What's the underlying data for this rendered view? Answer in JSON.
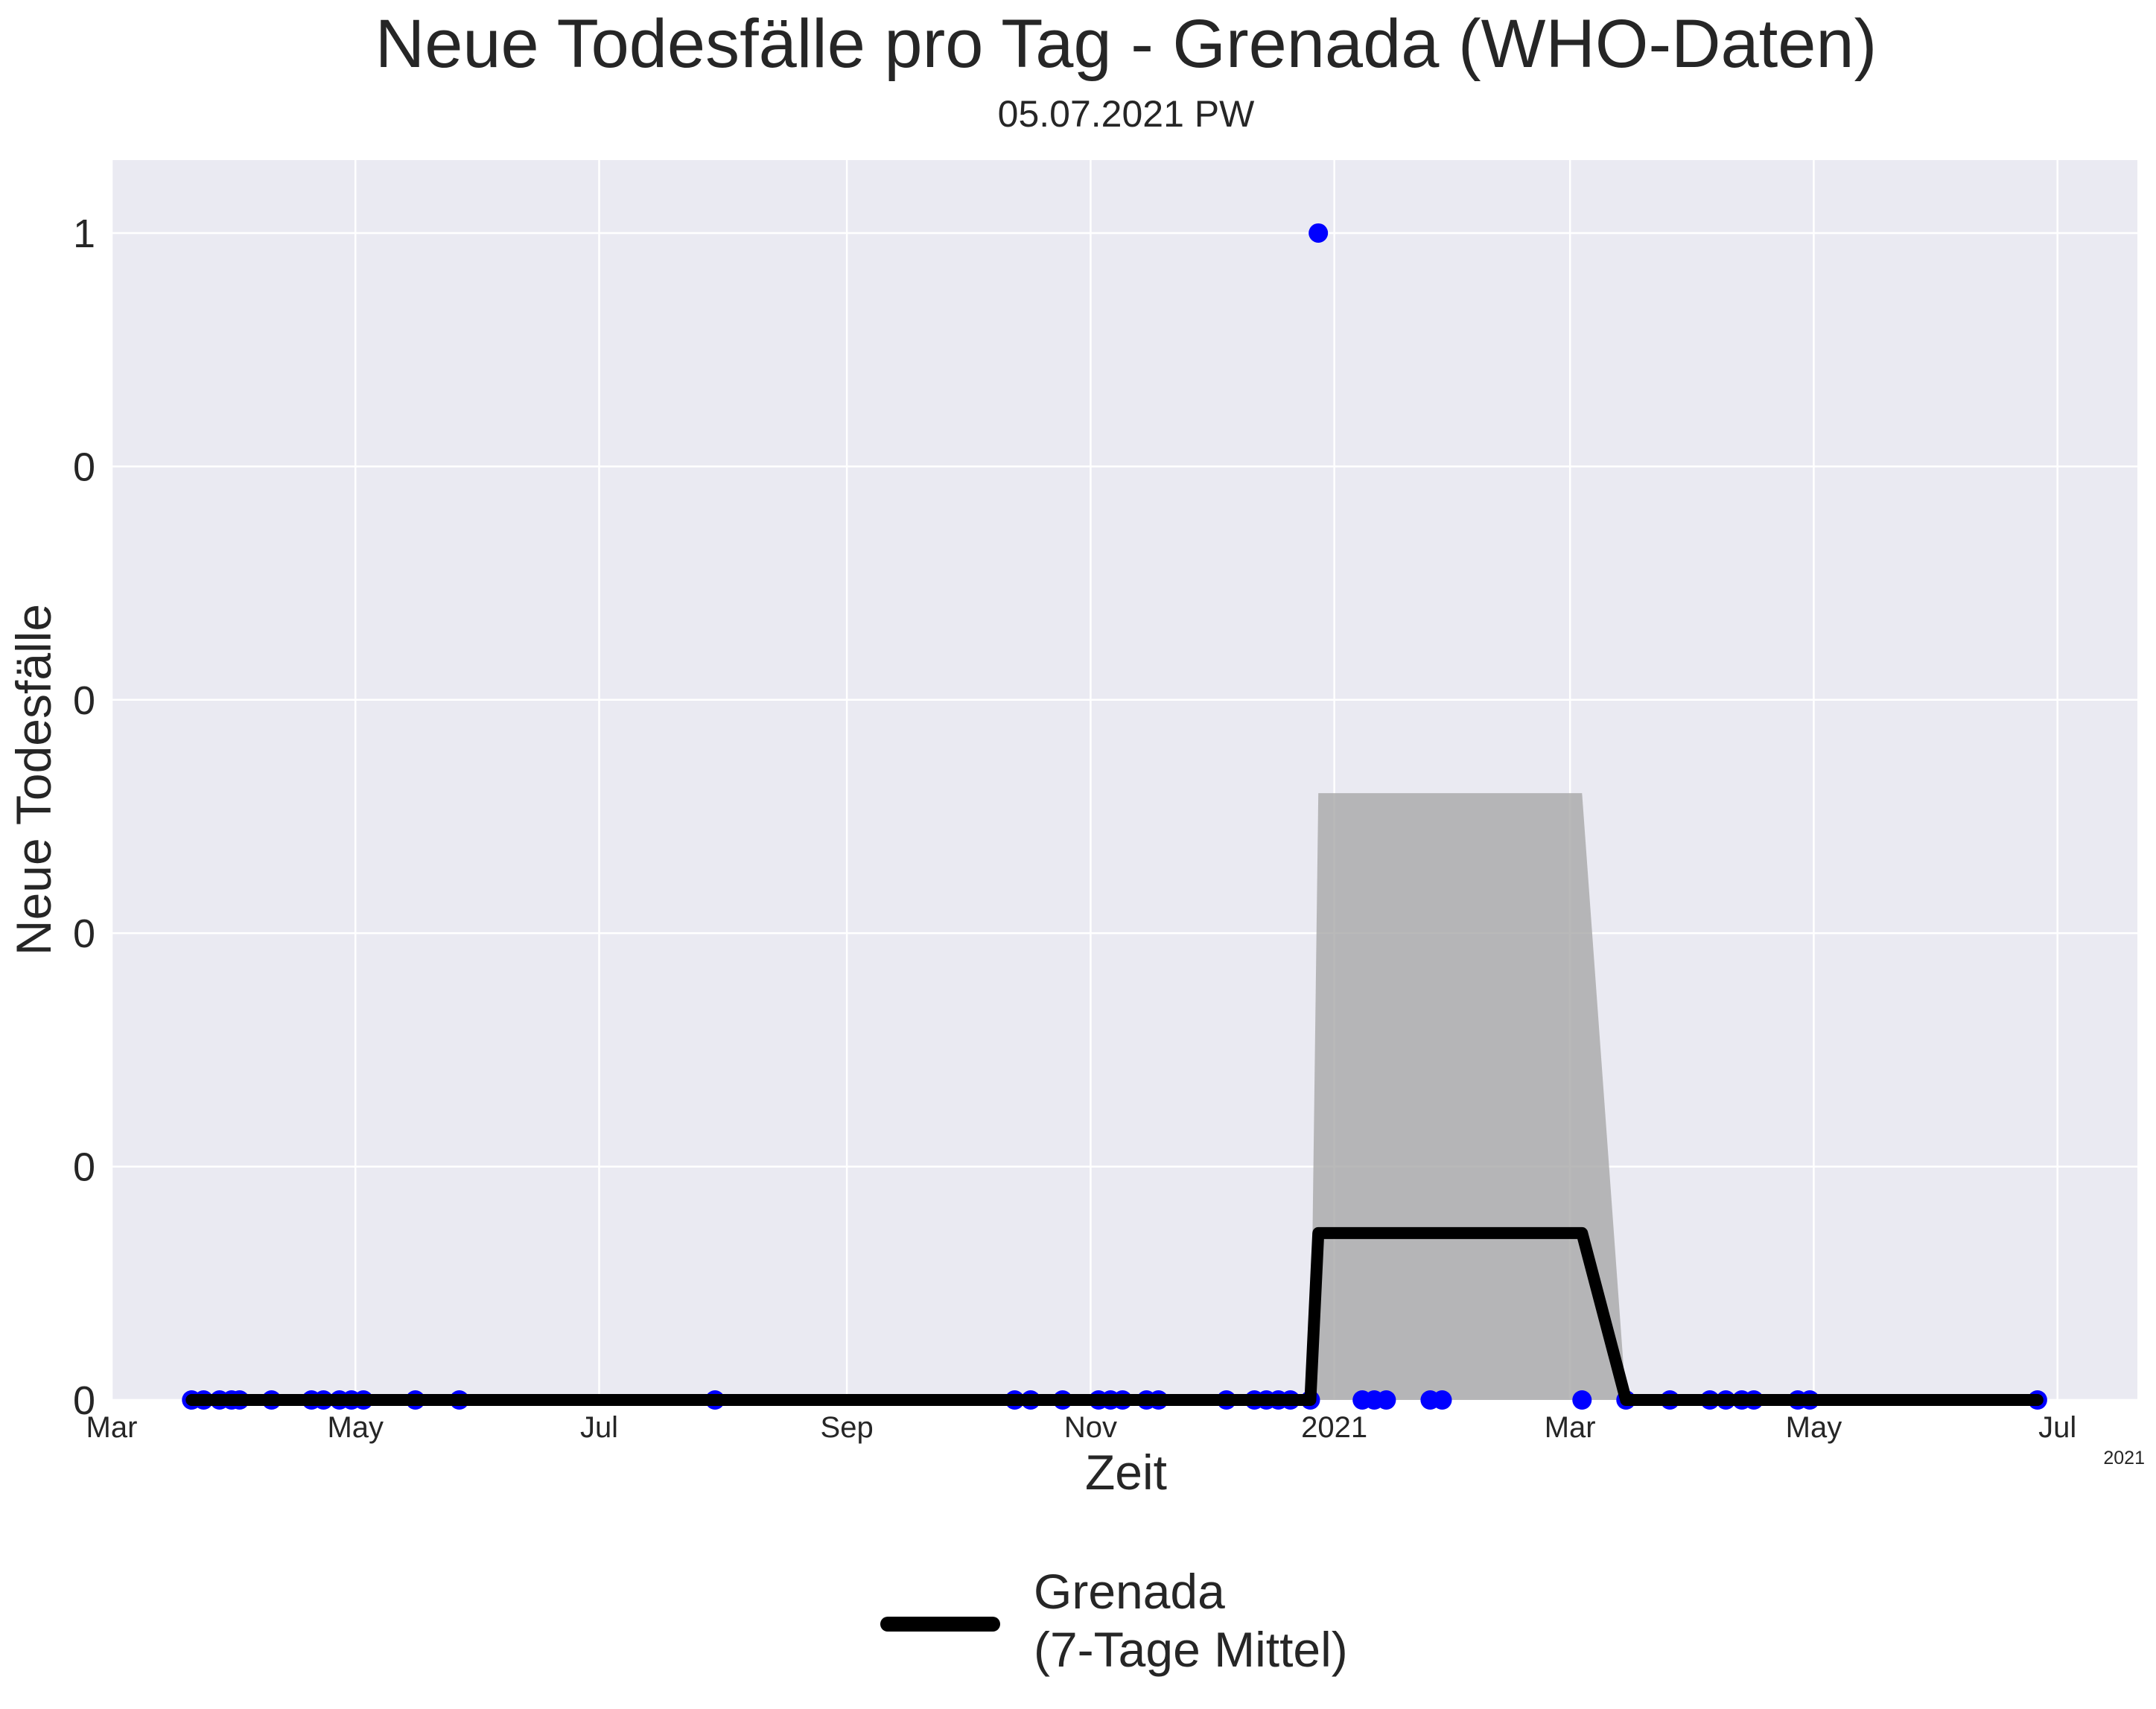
{
  "chart_data": {
    "type": "line",
    "title": "Neue Todesfälle pro Tag - Grenada (WHO-Daten)",
    "subtitle": "05.07.2021 PW",
    "xlabel": "Zeit",
    "ylabel": "Neue Todesfälle",
    "x_axis_type": "date",
    "xlim": [
      "2020-03-01",
      "2021-07-21"
    ],
    "ylim": [
      0,
      1.0625
    ],
    "y_ticks": [
      {
        "value": 0,
        "label": "0"
      },
      {
        "value": 0.2,
        "label": "0"
      },
      {
        "value": 0.4,
        "label": "0"
      },
      {
        "value": 0.6,
        "label": "0"
      },
      {
        "value": 0.8,
        "label": "0"
      },
      {
        "value": 1,
        "label": "1"
      }
    ],
    "x_ticks": [
      {
        "date": "2020-03-01",
        "label": "Mar"
      },
      {
        "date": "2020-05-01",
        "label": "May"
      },
      {
        "date": "2020-07-01",
        "label": "Jul"
      },
      {
        "date": "2020-09-01",
        "label": "Sep"
      },
      {
        "date": "2020-11-01",
        "label": "Nov"
      },
      {
        "date": "2021-01-01",
        "label": "2021"
      },
      {
        "date": "2021-03-01",
        "label": "Mar"
      },
      {
        "date": "2021-05-01",
        "label": "May"
      },
      {
        "date": "2021-07-01",
        "label": "Jul"
      }
    ],
    "x_offset_label": "2021",
    "grid": true,
    "legend_position": "bottom-center",
    "series": [
      {
        "kind": "scatter",
        "color": "#0000ff",
        "points": [
          {
            "x": "2020-03-21",
            "y": 0
          },
          {
            "x": "2020-03-24",
            "y": 0
          },
          {
            "x": "2020-03-28",
            "y": 0
          },
          {
            "x": "2020-03-31",
            "y": 0
          },
          {
            "x": "2020-04-02",
            "y": 0
          },
          {
            "x": "2020-04-10",
            "y": 0
          },
          {
            "x": "2020-04-20",
            "y": 0
          },
          {
            "x": "2020-04-23",
            "y": 0
          },
          {
            "x": "2020-04-27",
            "y": 0
          },
          {
            "x": "2020-04-30",
            "y": 0
          },
          {
            "x": "2020-05-03",
            "y": 0
          },
          {
            "x": "2020-05-16",
            "y": 0
          },
          {
            "x": "2020-05-27",
            "y": 0
          },
          {
            "x": "2020-07-30",
            "y": 0
          },
          {
            "x": "2020-10-13",
            "y": 0
          },
          {
            "x": "2020-10-17",
            "y": 0
          },
          {
            "x": "2020-10-25",
            "y": 0
          },
          {
            "x": "2020-11-03",
            "y": 0
          },
          {
            "x": "2020-11-06",
            "y": 0
          },
          {
            "x": "2020-11-09",
            "y": 0
          },
          {
            "x": "2020-11-15",
            "y": 0
          },
          {
            "x": "2020-11-18",
            "y": 0
          },
          {
            "x": "2020-12-05",
            "y": 0
          },
          {
            "x": "2020-12-12",
            "y": 0
          },
          {
            "x": "2020-12-15",
            "y": 0
          },
          {
            "x": "2020-12-18",
            "y": 0
          },
          {
            "x": "2020-12-21",
            "y": 0
          },
          {
            "x": "2020-12-26",
            "y": 0
          },
          {
            "x": "2020-12-28",
            "y": 1
          },
          {
            "x": "2021-01-08",
            "y": 0
          },
          {
            "x": "2021-01-11",
            "y": 0
          },
          {
            "x": "2021-01-14",
            "y": 0
          },
          {
            "x": "2021-01-25",
            "y": 0
          },
          {
            "x": "2021-01-28",
            "y": 0
          },
          {
            "x": "2021-03-04",
            "y": 0
          },
          {
            "x": "2021-03-15",
            "y": 0
          },
          {
            "x": "2021-03-26",
            "y": 0
          },
          {
            "x": "2021-04-05",
            "y": 0
          },
          {
            "x": "2021-04-09",
            "y": 0
          },
          {
            "x": "2021-04-13",
            "y": 0
          },
          {
            "x": "2021-04-16",
            "y": 0
          },
          {
            "x": "2021-04-27",
            "y": 0
          },
          {
            "x": "2021-04-30",
            "y": 0
          },
          {
            "x": "2021-06-26",
            "y": 0
          }
        ]
      },
      {
        "kind": "line",
        "name": "Grenada\n(7-Tage Mittel)",
        "color": "#000000",
        "points": [
          {
            "x": "2020-03-21",
            "y": 0
          },
          {
            "x": "2020-12-26",
            "y": 0
          },
          {
            "x": "2020-12-28",
            "y": 0.143
          },
          {
            "x": "2021-03-04",
            "y": 0.143
          },
          {
            "x": "2021-03-15",
            "y": 0
          },
          {
            "x": "2021-06-26",
            "y": 0
          }
        ]
      },
      {
        "kind": "area",
        "color": "#a9a9a9",
        "points": [
          {
            "x": "2020-12-26",
            "y": 0
          },
          {
            "x": "2020-12-28",
            "y": 0.52
          },
          {
            "x": "2021-03-04",
            "y": 0.52
          },
          {
            "x": "2021-03-15",
            "y": 0
          }
        ]
      }
    ]
  }
}
